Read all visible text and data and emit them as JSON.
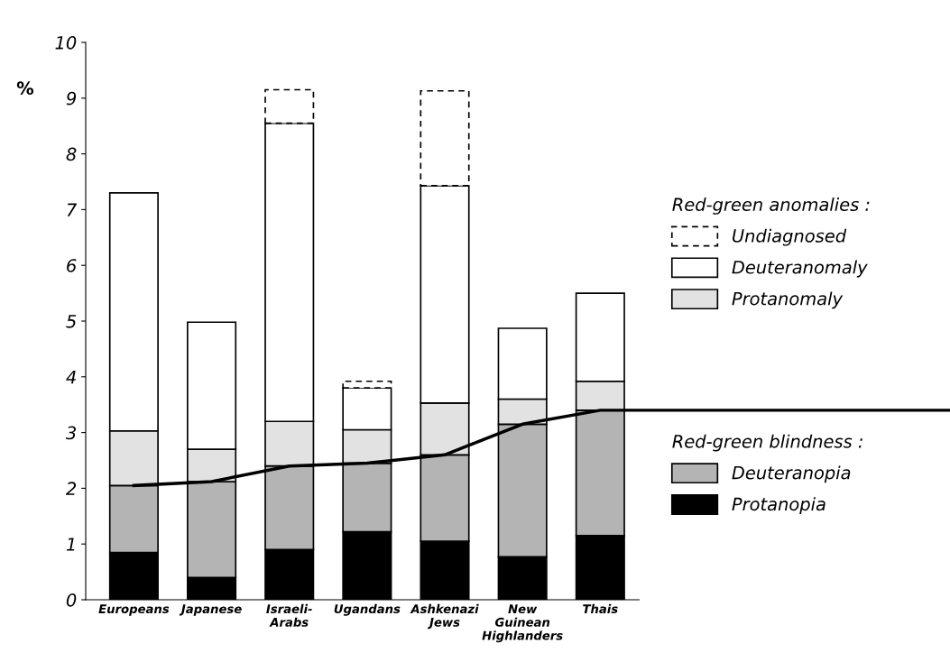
{
  "chart_data": {
    "type": "bar",
    "stacked": true,
    "ylabel": "%",
    "categories": [
      "Europeans",
      "Japanese",
      "Israeli-\nArabs",
      "Ugandans",
      "Ashkenazi\nJews",
      "New\nGuinean\nHighlanders",
      "Thais"
    ],
    "series": [
      {
        "name": "Protanopia",
        "color": "#000000",
        "values": [
          0.85,
          0.4,
          0.9,
          1.22,
          1.05,
          0.77,
          1.15
        ]
      },
      {
        "name": "Deuteranopia",
        "color": "#b4b4b4",
        "values": [
          1.2,
          1.72,
          1.5,
          1.23,
          1.55,
          2.38,
          2.25
        ]
      },
      {
        "name": "Protanomaly",
        "color": "#e2e2e2",
        "values": [
          0.98,
          0.58,
          0.8,
          0.6,
          0.93,
          0.45,
          0.52
        ]
      },
      {
        "name": "Deuteranomaly",
        "color": "#ffffff",
        "values": [
          4.27,
          2.28,
          5.35,
          0.75,
          3.9,
          1.27,
          1.58
        ]
      },
      {
        "name": "Undiagnosed",
        "color": "#ffffff",
        "line_style": "dashed",
        "values": [
          null,
          null,
          0.6,
          0.12,
          1.7,
          null,
          null
        ]
      },
      {
        "type": "line",
        "color": "#000000",
        "values": [
          2.05,
          2.12,
          2.4,
          2.45,
          2.6,
          3.15,
          3.4
        ]
      }
    ],
    "ylim": [
      0,
      10
    ],
    "yticks": [
      0,
      1,
      2,
      3,
      4,
      5,
      6,
      7,
      8,
      9,
      10
    ],
    "legend": "right",
    "grid": false,
    "annotations": [
      "Red-green anomalies :",
      "Red-green blindness :"
    ]
  }
}
